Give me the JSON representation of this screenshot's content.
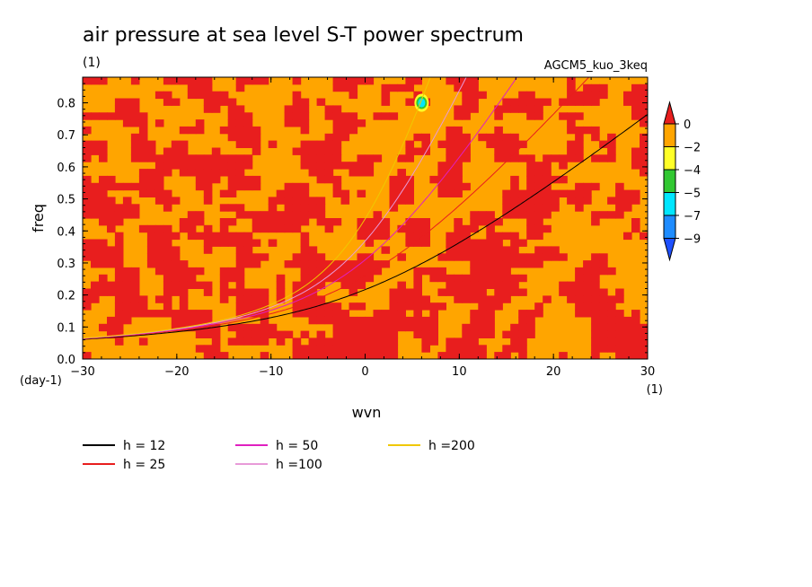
{
  "chart_data": {
    "type": "heatmap",
    "title": "air pressure at sea level S-T power spectrum",
    "title_units": "(1)",
    "subtitle_right": "AGCM5_kuo_3keq",
    "xlabel": "wvn",
    "ylabel": "freq",
    "x_units": "(1)",
    "y_units": "(day-1)",
    "xlim": [
      -30,
      30
    ],
    "ylim": [
      0,
      0.88
    ],
    "x_ticks": [
      -30,
      -20,
      -10,
      0,
      10,
      20,
      30
    ],
    "y_ticks": [
      0.0,
      0.1,
      0.2,
      0.3,
      0.4,
      0.5,
      0.6,
      0.7,
      0.8
    ],
    "colorbar": {
      "levels": [
        "0",
        "-2",
        "-4",
        "-5",
        "-7",
        "-9"
      ],
      "colors": [
        "#e81e1e",
        "#ffa500",
        "#ffff28",
        "#32c832",
        "#00e6ff",
        "#1e8cff",
        "#1e50ff"
      ]
    },
    "field_note": "mostly values between -2 and 0 (orange) with patches above 0 (red); small spot near wvn 6, freq 0.8",
    "dispersion_curves": [
      {
        "label": "h = 12",
        "color": "#000000"
      },
      {
        "label": "h = 25",
        "color": "#e81e1e"
      },
      {
        "label": "h = 50",
        "color": "#e020c0"
      },
      {
        "label": "h =100",
        "color": "#e89ad8"
      },
      {
        "label": "h =200",
        "color": "#f0c800"
      }
    ],
    "grid": false
  }
}
